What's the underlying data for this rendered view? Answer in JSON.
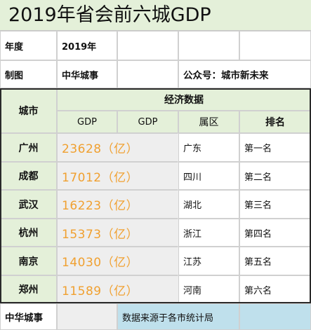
{
  "title": "2019年省会前六城GDP",
  "info": {
    "year_label": "年度",
    "year_value": "2019年",
    "made_label": "制图",
    "made_value": "中华城事",
    "wechat": "公众号：城市新未来"
  },
  "table": {
    "city_header": "城市",
    "group_header": "经济数据",
    "col_gdp1": "GDP",
    "col_gdp2": "GDP",
    "col_region": "属区",
    "col_rank": "排名",
    "rows": [
      {
        "city": "广州",
        "gdp": "23628（亿）",
        "region": "广东",
        "rank": "第一名"
      },
      {
        "city": "成都",
        "gdp": "17012（亿）",
        "region": "四川",
        "rank": "第二名"
      },
      {
        "city": "武汉",
        "gdp": "16223（亿）",
        "region": "湖北",
        "rank": "第三名"
      },
      {
        "city": "杭州",
        "gdp": "15373（亿）",
        "region": "浙江",
        "rank": "第四名"
      },
      {
        "city": "南京",
        "gdp": "14030（亿）",
        "region": "江苏",
        "rank": "第五名"
      },
      {
        "city": "郑州",
        "gdp": "11589（亿）",
        "region": "河南",
        "rank": "第六名"
      }
    ]
  },
  "footer": {
    "left": "中华城事",
    "source": "数据来源于各市统计局"
  },
  "colors": {
    "header_green": "#e4f0d9",
    "gdp_orange": "#f0a030",
    "footer_blue": "#bfe0ec",
    "gdp_bg_grey": "#eeeeee"
  }
}
